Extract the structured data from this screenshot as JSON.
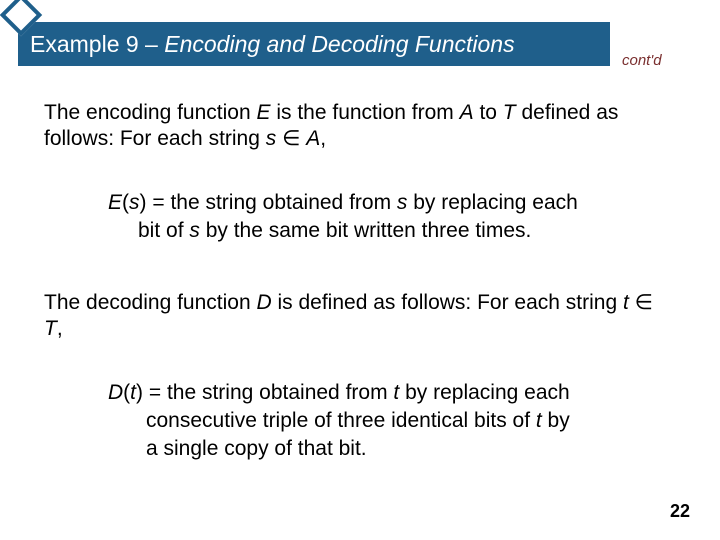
{
  "header": {
    "prefix": "Example 9 – ",
    "title_italic": "Encoding and Decoding Functions",
    "contd": "cont'd"
  },
  "colors": {
    "header_bg": "#1f5f8b",
    "header_text": "#ffffff",
    "contd_text": "#7a2f2f",
    "body_text": "#000000",
    "background": "#ffffff",
    "diamond_border": "#1f5f8b",
    "diamond_fill": "#ffffff"
  },
  "typography": {
    "header_fontsize": 23,
    "body_fontsize": 21,
    "contd_fontsize": 15,
    "slidenum_fontsize": 18
  },
  "paragraphs": {
    "p1_a": "The encoding function ",
    "p1_E": "E",
    "p1_b": " is the function from ",
    "p1_A": "A",
    "p1_c": " to ",
    "p1_T": "T",
    "p1_d": " defined as follows: For each string ",
    "p1_s": "s",
    "p1_e": " ∈ ",
    "p1_A2": "A",
    "p1_f": ",",
    "p2_Es": "E",
    "p2_paren": "(",
    "p2_s": "s",
    "p2_close": ")",
    "p2_a": " = the string obtained from ",
    "p2_s2": "s",
    "p2_b": " by replacing each",
    "p2b_a": "bit of ",
    "p2b_s": "s",
    "p2b_b": " by the same bit written three times.",
    "p3_a": "The decoding function ",
    "p3_D": "D",
    "p3_b": " is defined as follows: For each string ",
    "p3_t": "t",
    "p3_c": " ∈ ",
    "p3_T": "T",
    "p3_d": ",",
    "p4_D": "D",
    "p4_paren": "(",
    "p4_t": "t",
    "p4_close": ")",
    "p4_a": " = the string obtained from ",
    "p4_t2": "t",
    "p4_b": " by replacing each",
    "p4b_a": "consecutive triple of three identical bits of ",
    "p4b_t": "t",
    "p4b_b": " by",
    "p4c_a": "a single copy of that bit."
  },
  "slide_number": "22"
}
